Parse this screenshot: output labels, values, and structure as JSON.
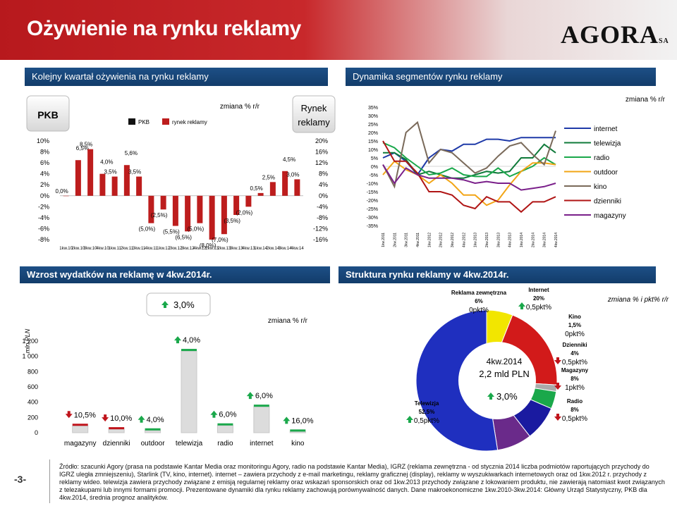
{
  "header": {
    "title": "Ożywienie na rynku reklamy",
    "logo": "AGORA",
    "logo_suffix": "SA"
  },
  "sections": {
    "top_left": "Kolejny kwartał ożywienia na rynku reklamy",
    "top_right": "Dynamika segmentów rynku reklamy",
    "bottom_left": "Wzrost wydatków na reklamę w 4kw.2014r.",
    "bottom_right": "Struktura rynku reklamy w 4kw.2014r."
  },
  "chart_data": [
    {
      "type": "bar",
      "left_badge": "PKB",
      "right_badge": "Rynek reklamy",
      "note": "zmiana % r/r",
      "legend": [
        "PKB",
        "rynek reklamy"
      ],
      "categories": [
        "1kw.10",
        "2kw.10",
        "3kw.10",
        "4kw.10",
        "1kw.11",
        "2kw.11",
        "3kw.11",
        "4kw.11",
        "1kw.12",
        "2kw.12",
        "3kw.12",
        "4kw.12",
        "1kw.13",
        "2kw.13",
        "3kw.13",
        "4kw.13",
        "1kw.14",
        "2kw.14",
        "3kw.14",
        "4kw.14"
      ],
      "ylim_left": [
        -8,
        10
      ],
      "yticks_left": [
        "10%",
        "8%",
        "6%",
        "4%",
        "2%",
        "0%",
        "-2%",
        "-4%",
        "-6%",
        "-8%"
      ],
      "yticks_right": [
        "20%",
        "16%",
        "12%",
        "8%",
        "4%",
        "0%",
        "-4%",
        "-8%",
        "-12%",
        "-16%"
      ],
      "pkb_labels": [
        "",
        "6,5%",
        "",
        "4,0%",
        "",
        "5,6%",
        "",
        "",
        "",
        "",
        "",
        "",
        "",
        "",
        "",
        "",
        "",
        "",
        "4,5%",
        ""
      ],
      "ad_labels": [
        "0,0%",
        "",
        "8,5%",
        "",
        "3,5%",
        "",
        "3,5%",
        "(5,0%)",
        "(2,5%)",
        "(5,5%)",
        "(6,5%)",
        "(5,0%)",
        "(8,0%)",
        "(7,0%)",
        "(3,5%)",
        "(2,0%)",
        "0,5%",
        "2,5%",
        "",
        "3,0%"
      ],
      "ad_values": [
        0.0,
        6.5,
        8.5,
        4.0,
        3.5,
        5.6,
        3.5,
        -5.0,
        -2.5,
        -5.5,
        -6.5,
        -5.0,
        -8.0,
        -7.0,
        -3.5,
        -2.0,
        0.5,
        2.5,
        4.5,
        3.0
      ]
    },
    {
      "type": "line",
      "note": "zmiana % r/r",
      "categories": [
        "1kw.2011",
        "2kw.2011",
        "3kw.2011",
        "4kw.2011",
        "1kw.2012",
        "2kw.2012",
        "3kw.2012",
        "4kw.2012",
        "1kw.2013",
        "2kw.2013",
        "3kw.2013",
        "4kw.2013",
        "1kw.2014",
        "2kw.2014",
        "3kw.2014",
        "4kw.2014"
      ],
      "ylim": [
        -35,
        35
      ],
      "yticks": [
        "35%",
        "30%",
        "25%",
        "20%",
        "15%",
        "10%",
        "5%",
        "0%",
        "-5%",
        "-10%",
        "-15%",
        "-20%",
        "-25%",
        "-30%",
        "-35%"
      ],
      "series": [
        {
          "name": "internet",
          "color": "#1f3aa8",
          "values": [
            5,
            8,
            3,
            -5,
            5,
            10,
            9,
            13,
            13,
            16,
            16,
            15,
            17,
            17,
            17,
            17
          ]
        },
        {
          "name": "telewizja",
          "color": "#0f7a3a",
          "values": [
            8,
            8,
            4,
            -5,
            -3,
            -5,
            -7,
            -7,
            -5,
            -3,
            -4,
            -3,
            5,
            5,
            13,
            8
          ]
        },
        {
          "name": "radio",
          "color": "#1aa84b",
          "values": [
            14,
            11,
            5,
            0,
            -5,
            -4,
            -1,
            -5,
            -6,
            -6,
            -1,
            -6,
            -3,
            0,
            5,
            1
          ]
        },
        {
          "name": "outdoor",
          "color": "#f2a516",
          "values": [
            -5,
            3,
            -2,
            -5,
            -10,
            -5,
            -10,
            -17,
            -17,
            -23,
            -20,
            -11,
            -3,
            2,
            2,
            1
          ]
        },
        {
          "name": "kino",
          "color": "#7a6a5a",
          "values": [
            1,
            -12,
            20,
            26,
            2,
            10,
            8,
            2,
            -4,
            -1,
            6,
            12,
            14,
            7,
            1,
            21
          ]
        },
        {
          "name": "dzienniki",
          "color": "#b01515",
          "values": [
            15,
            3,
            3,
            -4,
            -15,
            -15,
            -17,
            -23,
            -25,
            -18,
            -21,
            -21,
            -27,
            -21,
            -21,
            -18
          ]
        },
        {
          "name": "magazyny",
          "color": "#7a1f8a",
          "values": [
            1,
            -10,
            -1,
            -5,
            -7,
            -7,
            -7,
            -8,
            -10,
            -9,
            -10,
            -10,
            -14,
            -13,
            -12,
            -10
          ]
        }
      ]
    },
    {
      "type": "bar",
      "ylabel": "mln PLN",
      "note": "zmiana % r/r",
      "total_label": "3,0%",
      "ylim": [
        0,
        1200
      ],
      "yticks": [
        "1 200",
        "1 000",
        "800",
        "600",
        "400",
        "200",
        "0"
      ],
      "categories": [
        "magazyny",
        "dzienniki",
        "outdoor",
        "telewizja",
        "radio",
        "internet",
        "kino"
      ],
      "values": [
        90,
        45,
        30,
        1070,
        95,
        340,
        15
      ],
      "changes": [
        "10,5%",
        "10,0%",
        "4,0%",
        "4,0%",
        "6,0%",
        "6,0%",
        "16,0%"
      ],
      "directions": [
        "down",
        "down",
        "up",
        "up",
        "up",
        "up",
        "up"
      ]
    },
    {
      "type": "pie",
      "note": "zmiana % i pkt% r/r",
      "center_period": "4kw.2014",
      "center_total": "2,2 mld PLN",
      "center_change": "3,0%",
      "slices": [
        {
          "name": "Telewizja",
          "share": 52.5,
          "share_label": "52,5%",
          "change": "0,5pkt%",
          "dir": "up",
          "color": "#1f2fbf"
        },
        {
          "name": "Reklama zewnętrzna",
          "share": 6,
          "share_label": "6%",
          "change": "0pkt%",
          "dir": "none",
          "color": "#f2e600"
        },
        {
          "name": "Internet",
          "share": 20,
          "share_label": "20%",
          "change": "0,5pkt%",
          "dir": "up",
          "color": "#d21a1a"
        },
        {
          "name": "Kino",
          "share": 1.5,
          "share_label": "1,5%",
          "change": "0pkt%",
          "dir": "none",
          "color": "#aaaaaa"
        },
        {
          "name": "Dzienniki",
          "share": 4,
          "share_label": "4%",
          "change": "0,5pkt%",
          "dir": "down",
          "color": "#1aa84b"
        },
        {
          "name": "Magazyny",
          "share": 8,
          "share_label": "8%",
          "change": "1pkt%",
          "dir": "down",
          "color": "#1a1aa0"
        },
        {
          "name": "Radio",
          "share": 8,
          "share_label": "8%",
          "change": "0,5pkt%",
          "dir": "down",
          "color": "#6a2a8a"
        }
      ]
    }
  ],
  "footer": {
    "page": "-3-",
    "note": "Źródło: szacunki Agory (prasa na podstawie Kantar Media oraz monitoringu Agory, radio na podstawie Kantar Media), IGRZ (reklama zewnętrzna - od stycznia 2014 liczba podmiotów raportujących przychody do IGRZ uległa zmniejszeniu), Starlink (TV, kino, internet). internet – zawiera przychody z e-mail marketingu, reklamy graficznej (display), reklamy w wyszukiwarkach internetowych oraz od 1kw.2012 r. przychody z reklamy wideo. telewizja zawiera przychody związane z emisją regularnej reklamy oraz wskazań sponsorskich oraz od 1kw.2013 przychody związane z lokowaniem produktu, nie zawierają natomiast kwot związanych z telezakupami lub innymi formami promocji. Prezentowane dynamiki dla rynku reklamy zachowują porównywalność danych. Dane makroekonomiczne 1kw.2010-3kw.2014: Główny Urząd Statystyczny, PKB dla 4kw.2014, średnia prognoz analityków."
  }
}
